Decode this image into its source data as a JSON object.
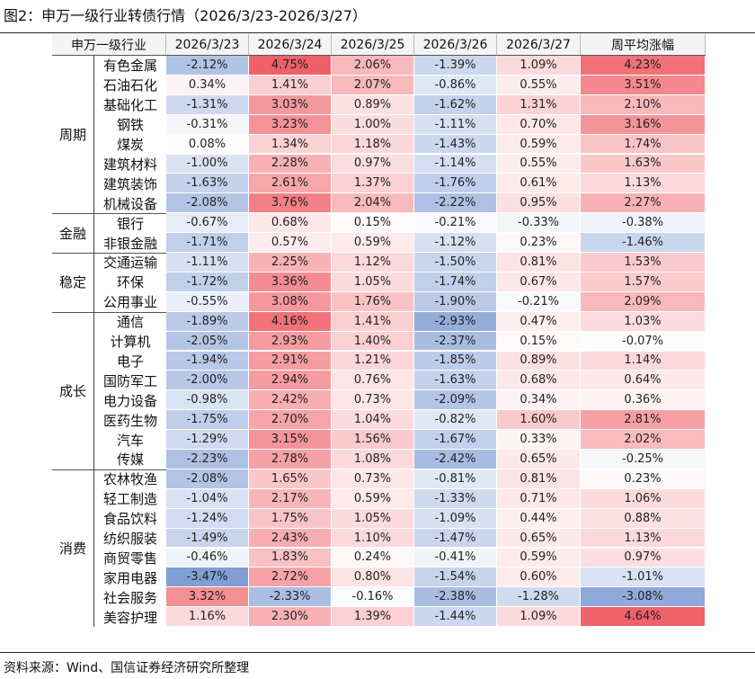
{
  "title": "图2：申万一级行业转债行情（2026/3/23-2026/3/27）",
  "table": {
    "header": [
      "申万一级行业",
      "2026/3/23",
      "2026/3/24",
      "2026/3/25",
      "2026/3/26",
      "2026/3/27",
      "周平均涨幅"
    ],
    "groups": [
      {
        "label": "周期",
        "rows": [
          {
            "name": "有色金属",
            "cells": [
              "-2.12%",
              "4.75%",
              "2.06%",
              "-1.39%",
              "1.09%",
              "4.23%"
            ]
          },
          {
            "name": "石油石化",
            "cells": [
              "0.34%",
              "1.41%",
              "2.07%",
              "-0.86%",
              "0.55%",
              "3.51%"
            ]
          },
          {
            "name": "基础化工",
            "cells": [
              "-1.31%",
              "3.03%",
              "0.89%",
              "-1.62%",
              "1.31%",
              "2.10%"
            ]
          },
          {
            "name": "钢铁",
            "cells": [
              "-0.31%",
              "3.23%",
              "1.00%",
              "-1.11%",
              "0.70%",
              "3.16%"
            ]
          },
          {
            "name": "煤炭",
            "cells": [
              "0.08%",
              "1.34%",
              "1.18%",
              "-1.43%",
              "0.59%",
              "1.74%"
            ]
          },
          {
            "name": "建筑材料",
            "cells": [
              "-1.00%",
              "2.28%",
              "0.97%",
              "-1.14%",
              "0.55%",
              "1.63%"
            ]
          },
          {
            "name": "建筑装饰",
            "cells": [
              "-1.63%",
              "2.61%",
              "1.37%",
              "-1.76%",
              "0.61%",
              "1.13%"
            ]
          },
          {
            "name": "机械设备",
            "cells": [
              "-2.08%",
              "3.76%",
              "2.04%",
              "-2.22%",
              "0.95%",
              "2.27%"
            ]
          }
        ]
      },
      {
        "label": "金融",
        "rows": [
          {
            "name": "银行",
            "cells": [
              "-0.67%",
              "0.68%",
              "0.15%",
              "-0.21%",
              "-0.33%",
              "-0.38%"
            ]
          },
          {
            "name": "非银金融",
            "cells": [
              "-1.71%",
              "0.57%",
              "0.59%",
              "-1.12%",
              "0.23%",
              "-1.46%"
            ]
          }
        ]
      },
      {
        "label": "稳定",
        "rows": [
          {
            "name": "交通运输",
            "cells": [
              "-1.11%",
              "2.25%",
              "1.12%",
              "-1.50%",
              "0.81%",
              "1.53%"
            ]
          },
          {
            "name": "环保",
            "cells": [
              "-1.72%",
              "3.36%",
              "1.05%",
              "-1.74%",
              "0.67%",
              "1.57%"
            ]
          },
          {
            "name": "公用事业",
            "cells": [
              "-0.55%",
              "3.08%",
              "1.76%",
              "-1.90%",
              "-0.21%",
              "2.09%"
            ]
          }
        ]
      },
      {
        "label": "成长",
        "rows": [
          {
            "name": "通信",
            "cells": [
              "-1.89%",
              "4.16%",
              "1.41%",
              "-2.93%",
              "0.47%",
              "1.03%"
            ]
          },
          {
            "name": "计算机",
            "cells": [
              "-2.05%",
              "2.93%",
              "1.40%",
              "-2.37%",
              "0.15%",
              "-0.07%"
            ]
          },
          {
            "name": "电子",
            "cells": [
              "-1.94%",
              "2.91%",
              "1.21%",
              "-1.85%",
              "0.89%",
              "1.14%"
            ]
          },
          {
            "name": "国防军工",
            "cells": [
              "-2.00%",
              "2.94%",
              "0.76%",
              "-1.63%",
              "0.68%",
              "0.64%"
            ]
          },
          {
            "name": "电力设备",
            "cells": [
              "-0.98%",
              "2.42%",
              "0.73%",
              "-2.09%",
              "0.34%",
              "0.36%"
            ]
          },
          {
            "name": "医药生物",
            "cells": [
              "-1.75%",
              "2.70%",
              "1.04%",
              "-0.82%",
              "1.60%",
              "2.81%"
            ]
          },
          {
            "name": "汽车",
            "cells": [
              "-1.29%",
              "3.15%",
              "1.56%",
              "-1.67%",
              "0.33%",
              "2.02%"
            ]
          },
          {
            "name": "传媒",
            "cells": [
              "-2.23%",
              "2.78%",
              "1.08%",
              "-2.42%",
              "0.65%",
              "-0.25%"
            ]
          }
        ]
      },
      {
        "label": "消费",
        "rows": [
          {
            "name": "农林牧渔",
            "cells": [
              "-2.08%",
              "1.65%",
              "0.73%",
              "-0.81%",
              "0.81%",
              "0.23%"
            ]
          },
          {
            "name": "轻工制造",
            "cells": [
              "-1.04%",
              "2.17%",
              "0.59%",
              "-1.33%",
              "0.71%",
              "1.06%"
            ]
          },
          {
            "name": "食品饮料",
            "cells": [
              "-1.24%",
              "1.75%",
              "1.05%",
              "-1.09%",
              "0.44%",
              "0.88%"
            ]
          },
          {
            "name": "纺织服装",
            "cells": [
              "-1.49%",
              "2.43%",
              "1.10%",
              "-1.47%",
              "0.65%",
              "1.13%"
            ]
          },
          {
            "name": "商贸零售",
            "cells": [
              "-0.46%",
              "1.83%",
              "0.24%",
              "-0.41%",
              "0.59%",
              "0.97%"
            ]
          },
          {
            "name": "家用电器",
            "cells": [
              "-3.47%",
              "2.72%",
              "0.80%",
              "-1.54%",
              "0.60%",
              "-1.01%"
            ]
          },
          {
            "name": "社会服务",
            "cells": [
              "3.32%",
              "-2.33%",
              "-0.16%",
              "-2.38%",
              "-1.28%",
              "-3.08%"
            ]
          },
          {
            "name": "美容护理",
            "cells": [
              "1.16%",
              "2.30%",
              "1.39%",
              "-1.44%",
              "1.09%",
              "4.64%"
            ]
          }
        ]
      }
    ]
  },
  "source": "资料来源：Wind、国信证券经济研究所整理"
}
